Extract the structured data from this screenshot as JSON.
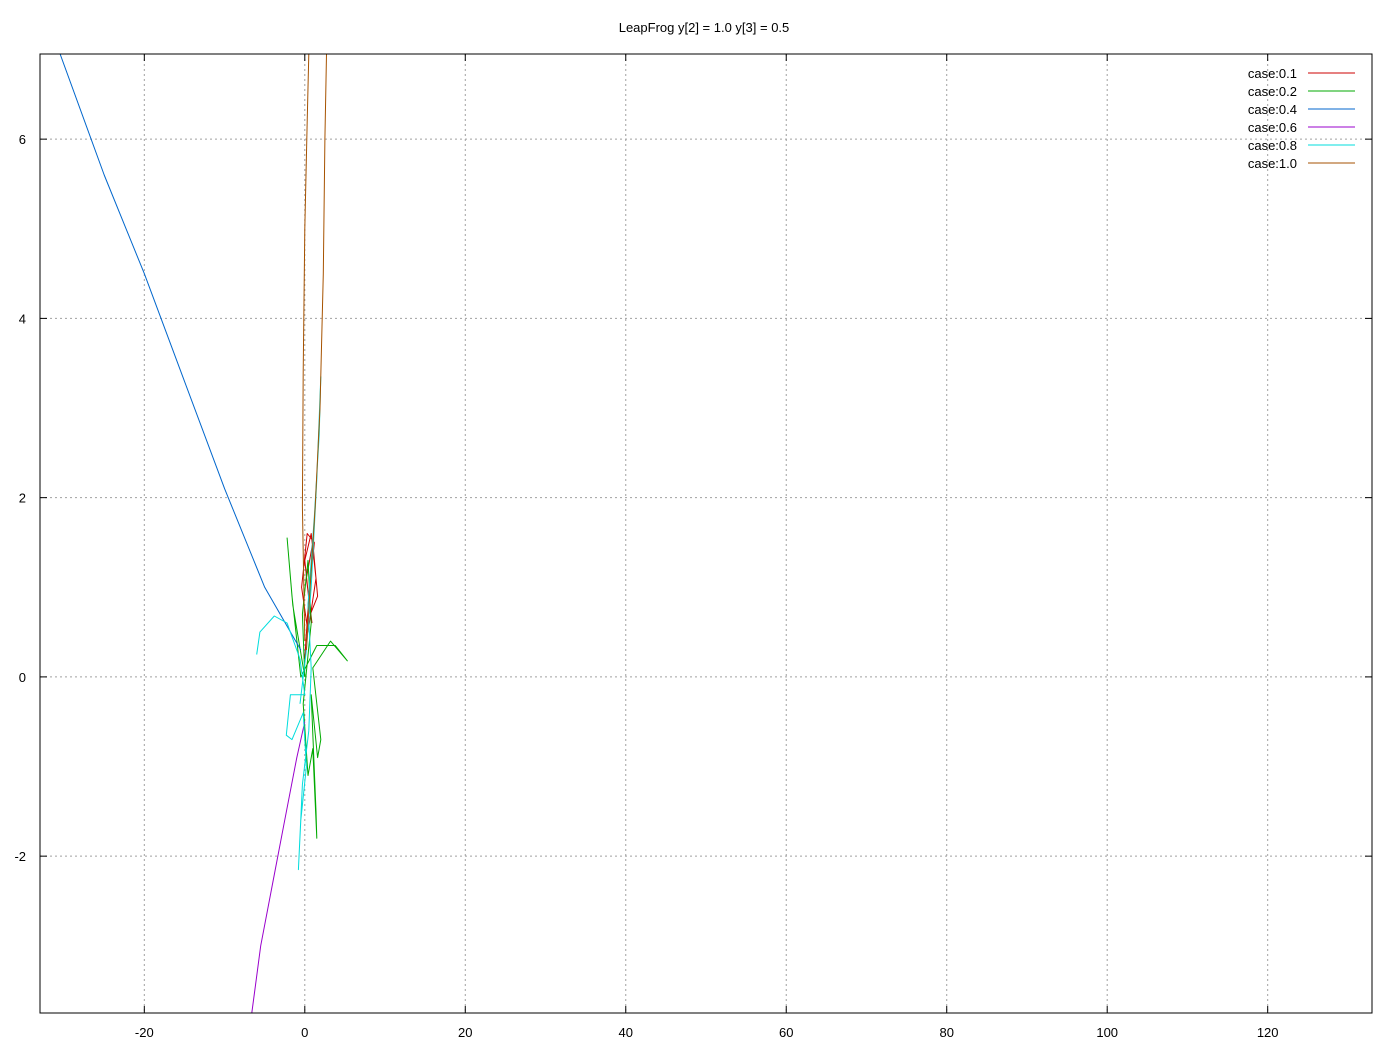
{
  "chart_data": {
    "type": "line",
    "title": "LeapFrog y[2] = 1.0 y[3] = 0.5",
    "xlabel": "",
    "ylabel": "",
    "xlim": [
      -33,
      133
    ],
    "ylim": [
      -3.75,
      6.95
    ],
    "xticks": [
      -20,
      0,
      20,
      40,
      60,
      80,
      100,
      120
    ],
    "yticks": [
      -2,
      0,
      2,
      4,
      6
    ],
    "grid": true,
    "legend_position": "top-right",
    "series": [
      {
        "name": "case:0.1",
        "color": "#cc0000",
        "points": [
          [
            0.0,
            0.2
          ],
          [
            0.5,
            0.9
          ],
          [
            1.2,
            1.5
          ],
          [
            0.3,
            1.6
          ],
          [
            -0.4,
            1.0
          ],
          [
            0.4,
            0.5
          ],
          [
            1.4,
            1.1
          ],
          [
            0.8,
            1.6
          ],
          [
            0.0,
            1.3
          ],
          [
            0.7,
            0.7
          ],
          [
            1.6,
            0.9
          ],
          [
            1.0,
            1.5
          ],
          [
            0.2,
            1.1
          ],
          [
            0.9,
            0.6
          ]
        ]
      },
      {
        "name": "case:0.2",
        "color": "#00aa00",
        "points": [
          [
            0.0,
            0.0
          ],
          [
            -1.5,
            0.8
          ],
          [
            -2.2,
            1.55
          ],
          [
            -1.6,
            0.9
          ],
          [
            -0.5,
            0.0
          ],
          [
            1.5,
            0.35
          ],
          [
            3.8,
            0.35
          ],
          [
            5.3,
            0.18
          ],
          [
            3.2,
            0.4
          ],
          [
            1.0,
            0.1
          ],
          [
            2.0,
            -0.7
          ],
          [
            1.6,
            -0.9
          ],
          [
            0.8,
            -0.2
          ],
          [
            1.4,
            -1.5
          ],
          [
            1.5,
            -1.8
          ],
          [
            1.0,
            -0.8
          ],
          [
            0.4,
            -1.1
          ],
          [
            -0.2,
            -0.3
          ],
          [
            0.8,
            0.6
          ],
          [
            0.4,
            1.3
          ],
          [
            -0.3,
            0.7
          ],
          [
            0.0,
            0.0
          ]
        ]
      },
      {
        "name": "case:0.4",
        "color": "#0066cc",
        "points": [
          [
            -0.5,
            0.3
          ],
          [
            -5.0,
            1.0
          ],
          [
            -10.0,
            2.1
          ],
          [
            -15.0,
            3.3
          ],
          [
            -20.0,
            4.5
          ],
          [
            -25.0,
            5.6
          ],
          [
            -30.5,
            6.95
          ]
        ]
      },
      {
        "name": "case:0.6",
        "color": "#9900cc",
        "points": [
          [
            0.0,
            -0.5
          ],
          [
            -1.0,
            -0.9
          ],
          [
            -2.5,
            -1.6
          ],
          [
            -4.0,
            -2.3
          ],
          [
            -5.5,
            -3.0
          ],
          [
            -6.6,
            -3.75
          ]
        ]
      },
      {
        "name": "case:0.8",
        "color": "#00dddd",
        "points": [
          [
            -6.0,
            0.25
          ],
          [
            -5.6,
            0.5
          ],
          [
            -3.8,
            0.68
          ],
          [
            -2.2,
            0.6
          ],
          [
            -0.6,
            0.2
          ],
          [
            0.0,
            -0.2
          ],
          [
            -1.8,
            -0.2
          ],
          [
            -2.3,
            -0.65
          ],
          [
            -1.6,
            -0.7
          ],
          [
            -0.2,
            -0.4
          ],
          [
            0.2,
            -1.0
          ],
          [
            -0.5,
            -1.6
          ],
          [
            -0.8,
            -2.15
          ],
          [
            -0.3,
            -1.2
          ],
          [
            0.5,
            -0.6
          ],
          [
            0.8,
            0.1
          ],
          [
            0.4,
            0.8
          ],
          [
            1.2,
            1.8
          ],
          [
            1.8,
            2.7
          ],
          [
            2.0,
            3.35
          ],
          [
            1.5,
            2.2
          ],
          [
            0.8,
            1.0
          ],
          [
            0.2,
            0.3
          ],
          [
            -0.6,
            -0.3
          ]
        ]
      },
      {
        "name": "case:1.0",
        "color": "#a65200",
        "points": [
          [
            0.0,
            0.4
          ],
          [
            -0.3,
            1.9
          ],
          [
            -0.2,
            3.4
          ],
          [
            0.0,
            5.0
          ],
          [
            0.3,
            6.2
          ],
          [
            0.5,
            6.95
          ],
          [
            2.7,
            6.95
          ],
          [
            2.5,
            6.0
          ],
          [
            2.3,
            4.5
          ],
          [
            1.9,
            3.0
          ],
          [
            1.3,
            1.9
          ],
          [
            0.6,
            0.9
          ],
          [
            0.2,
            0.3
          ]
        ]
      }
    ]
  }
}
